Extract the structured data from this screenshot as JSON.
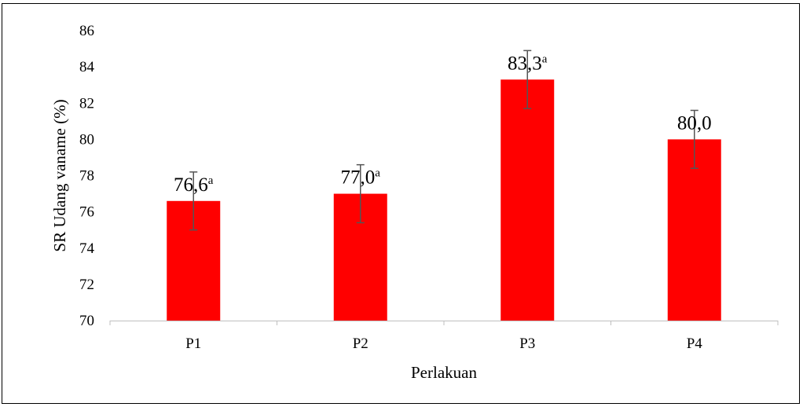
{
  "chart_data": {
    "type": "bar",
    "title": "",
    "xlabel": "Perlakuan",
    "ylabel": "SR Udang vaname (%)",
    "categories": [
      "P1",
      "P2",
      "P3",
      "P4"
    ],
    "values": [
      76.6,
      77.0,
      83.3,
      80.0
    ],
    "error_bars": [
      1.6,
      1.6,
      1.6,
      1.6
    ],
    "data_labels": [
      {
        "text": "76,6",
        "sup": "a"
      },
      {
        "text": "77,0",
        "sup": "a"
      },
      {
        "text": "83,3",
        "sup": "a"
      },
      {
        "text": "80,0",
        "sup": ""
      }
    ],
    "ylim": [
      70,
      86
    ],
    "yticks": [
      70,
      72,
      74,
      76,
      78,
      80,
      82,
      84,
      86
    ],
    "grid": false,
    "legend": "none",
    "bar_color": "#ff0000",
    "error_bar_color": "#555555",
    "axis_color": "#bfbfbf"
  }
}
